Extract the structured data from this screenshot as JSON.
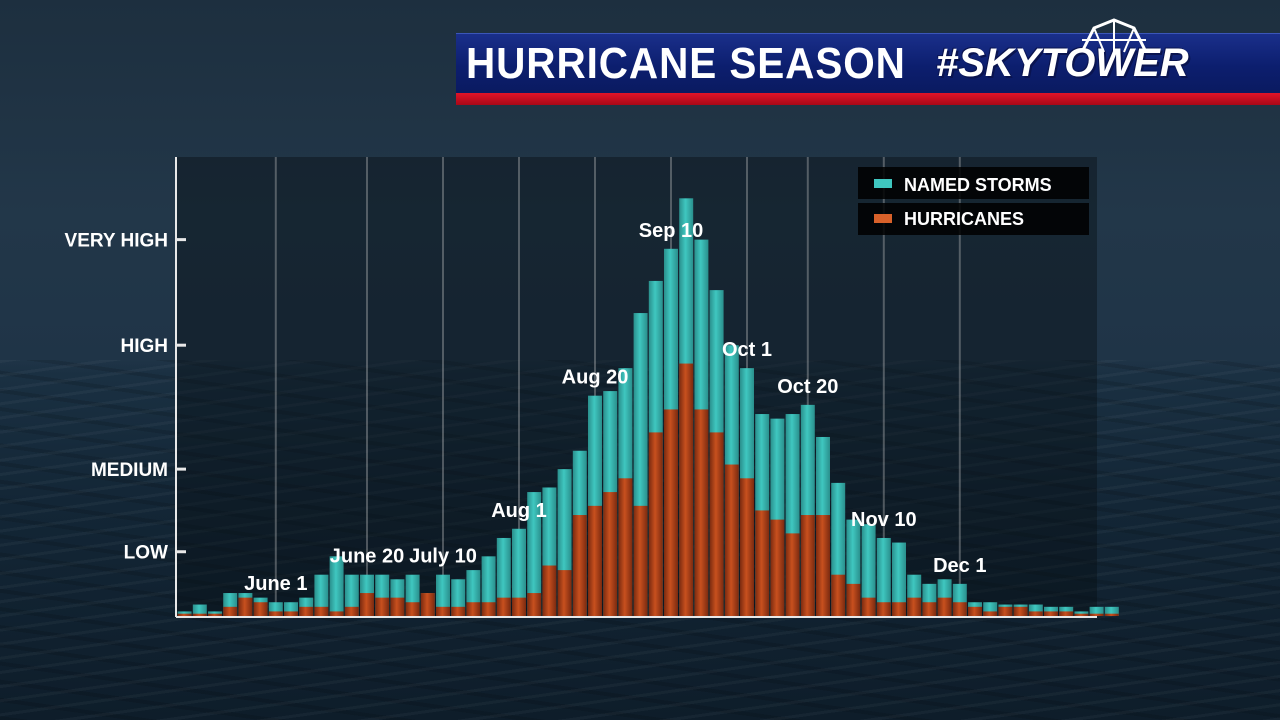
{
  "header": {
    "title": "HURRICANE SEASON",
    "brand": "#SKYTOWER"
  },
  "colors": {
    "named_storms": "#3fc7c0",
    "hurricanes": "#c8501e",
    "banner_blue": "#0c1e6e",
    "banner_red": "#d01020"
  },
  "chart_data": {
    "type": "bar",
    "title": "HURRICANE SEASON",
    "xlabel": "",
    "ylabel": "",
    "ylim": [
      0,
      100
    ],
    "yticks": [
      {
        "label": "LOW",
        "value": 14
      },
      {
        "label": "MEDIUM",
        "value": 32
      },
      {
        "label": "HIGH",
        "value": 59
      },
      {
        "label": "VERY HIGH",
        "value": 82
      }
    ],
    "legend": {
      "position": "top-right",
      "entries": [
        "NAMED STORMS",
        "HURRICANES"
      ]
    },
    "series": [
      {
        "name": "NAMED STORMS",
        "values": [
          1,
          2.5,
          1,
          5,
          5,
          4,
          3,
          3,
          4,
          9,
          13,
          9,
          9,
          9,
          8,
          9,
          5,
          9,
          8,
          10,
          13,
          17,
          19,
          27,
          28,
          32,
          36,
          48,
          49,
          54,
          66,
          73,
          80,
          91,
          82,
          71,
          59,
          54,
          44,
          43,
          44,
          46,
          39,
          29,
          21,
          20,
          17,
          16,
          9,
          7,
          8,
          7,
          3,
          3,
          2.5,
          2.5,
          2.5,
          2,
          2,
          1,
          2,
          2
        ]
      },
      {
        "name": "HURRICANES",
        "values": [
          0.5,
          0.5,
          0.5,
          2,
          4,
          3,
          1,
          1,
          2,
          2,
          1,
          2,
          5,
          4,
          4,
          3,
          5,
          2,
          2,
          3,
          3,
          4,
          4,
          5,
          11,
          10,
          22,
          24,
          27,
          30,
          24,
          40,
          45,
          55,
          45,
          40,
          33,
          30,
          23,
          21,
          18,
          22,
          22,
          9,
          7,
          4,
          3,
          3,
          4,
          3,
          4,
          3,
          2,
          1,
          2,
          2,
          1,
          1,
          1,
          0.5,
          0.5,
          0.5
        ]
      }
    ],
    "date_labels": [
      {
        "text": "June 1",
        "bar": 6
      },
      {
        "text": "June 20",
        "bar": 12
      },
      {
        "text": "July 10",
        "bar": 17
      },
      {
        "text": "Aug 1",
        "bar": 22
      },
      {
        "text": "Aug 20",
        "bar": 27
      },
      {
        "text": "Sep 10",
        "bar": 32
      },
      {
        "text": "Oct 1",
        "bar": 37
      },
      {
        "text": "Oct 20",
        "bar": 41
      },
      {
        "text": "Nov 10",
        "bar": 46
      },
      {
        "text": "Dec 1",
        "bar": 51
      }
    ]
  }
}
